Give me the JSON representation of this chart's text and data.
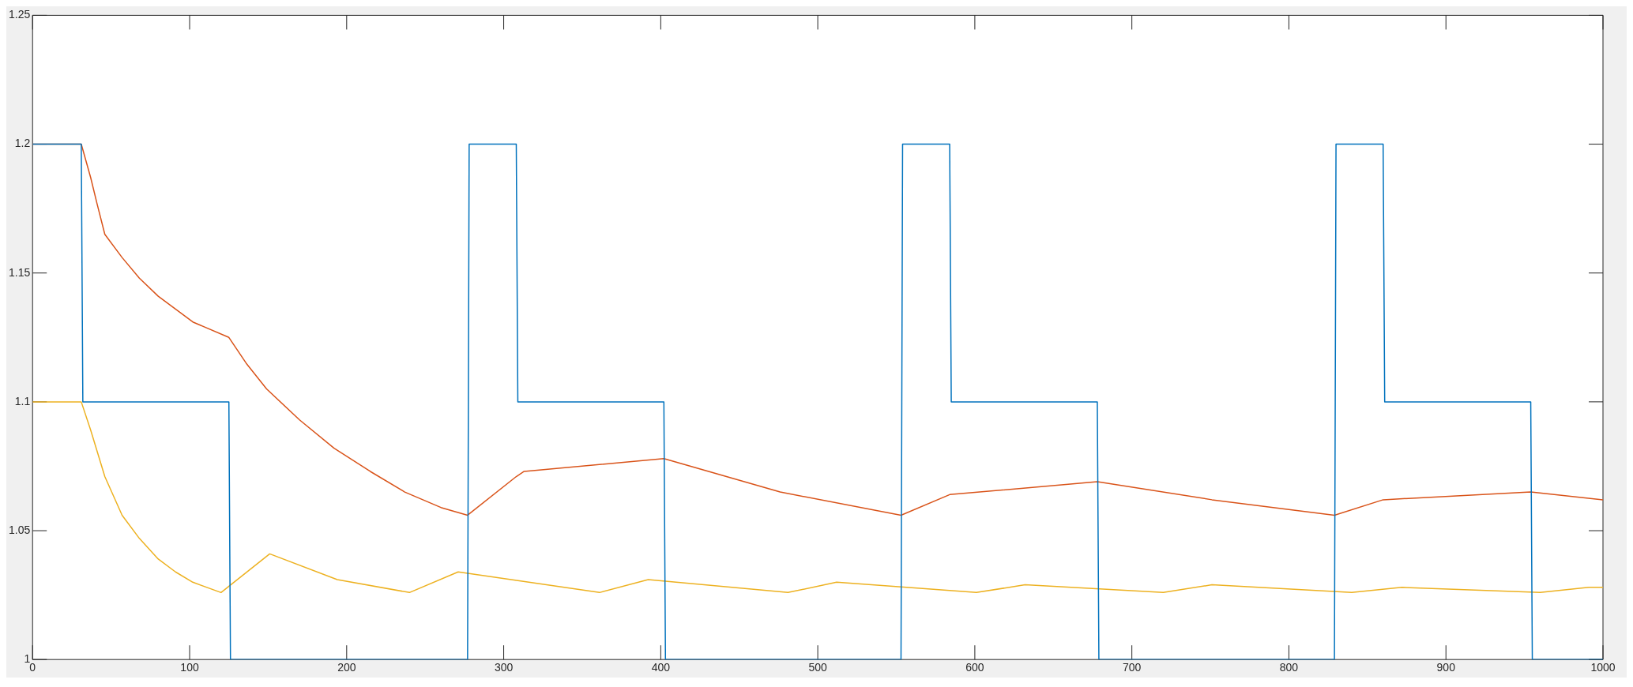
{
  "chart_data": {
    "type": "line",
    "xlim": [
      0,
      1000
    ],
    "xticks": [
      0,
      100,
      200,
      300,
      400,
      500,
      600,
      700,
      800,
      900,
      1000
    ],
    "ylim": [
      1,
      1.25
    ],
    "yticks": [
      1,
      1.05,
      1.1,
      1.15,
      1.2,
      1.25
    ],
    "grid": false,
    "legend": false,
    "marker": "none",
    "line_style": "solid",
    "series": [
      {
        "color": "#0072bd",
        "x": [
          0,
          31,
          32,
          125,
          126,
          277,
          278,
          308,
          309,
          402,
          403,
          553,
          554,
          584,
          585,
          678,
          679,
          829,
          830,
          860,
          861,
          954,
          955,
          1000
        ],
        "values": [
          1.2,
          1.2,
          1.1,
          1.1,
          1,
          1,
          1.2,
          1.2,
          1.1,
          1.1,
          1,
          1,
          1.2,
          1.2,
          1.1,
          1.1,
          1,
          1,
          1.2,
          1.2,
          1.1,
          1.1,
          1,
          1
        ]
      },
      {
        "color": "#d95319",
        "x": [
          0,
          31,
          37,
          41,
          46,
          57,
          68,
          80,
          91,
          102,
          125,
          136,
          149,
          170,
          192,
          215,
          237,
          260,
          277,
          308,
          313,
          402,
          476,
          553,
          584,
          678,
          751,
          829,
          860,
          954,
          1000
        ],
        "values": [
          1.2,
          1.2,
          1.187,
          1.177,
          1.165,
          1.156,
          1.148,
          1.141,
          1.136,
          1.131,
          1.125,
          1.115,
          1.105,
          1.093,
          1.082,
          1.073,
          1.065,
          1.059,
          1.056,
          1.071,
          1.073,
          1.078,
          1.065,
          1.056,
          1.064,
          1.069,
          1.062,
          1.056,
          1.062,
          1.065,
          1.062
        ]
      },
      {
        "color": "#edb120",
        "x": [
          0,
          31,
          37,
          46,
          57,
          68,
          80,
          91,
          102,
          120,
          151,
          194,
          240,
          271,
          361,
          392,
          481,
          512,
          601,
          632,
          720,
          751,
          840,
          872,
          960,
          991,
          1000
        ],
        "values": [
          1.1,
          1.1,
          1.089,
          1.071,
          1.056,
          1.047,
          1.039,
          1.034,
          1.03,
          1.026,
          1.041,
          1.031,
          1.026,
          1.034,
          1.026,
          1.031,
          1.026,
          1.03,
          1.026,
          1.029,
          1.026,
          1.029,
          1.026,
          1.028,
          1.026,
          1.028,
          1.028
        ]
      }
    ]
  }
}
